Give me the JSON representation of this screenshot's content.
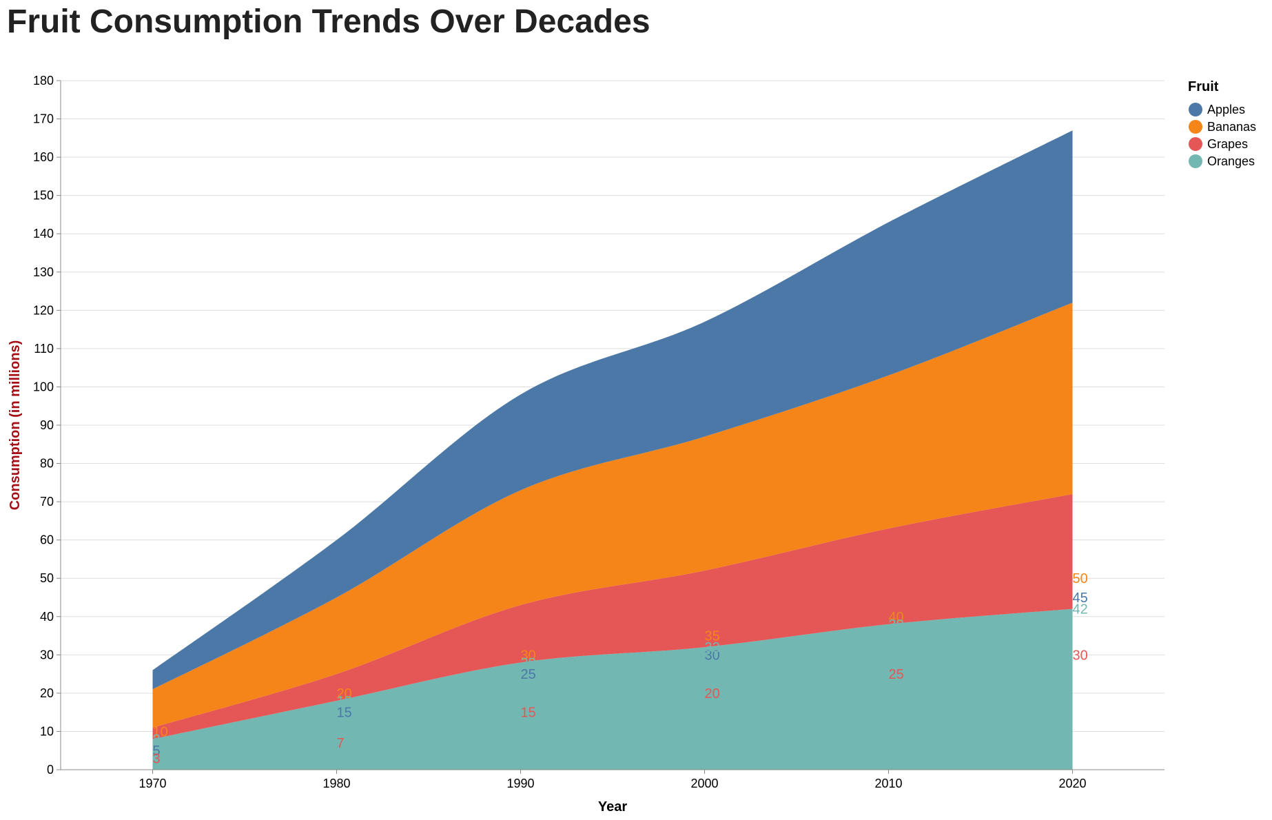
{
  "chart_data": {
    "type": "area",
    "stacked": true,
    "title": "Fruit Consumption Trends Over Decades",
    "xlabel": "Year",
    "ylabel": "Consumption (in millions)",
    "x": [
      1970,
      1980,
      1990,
      2000,
      2010,
      2020
    ],
    "xlim": [
      1965,
      2025
    ],
    "ylim": [
      0,
      180
    ],
    "y_ticks": [
      0,
      10,
      20,
      30,
      40,
      50,
      60,
      70,
      80,
      90,
      100,
      110,
      120,
      130,
      140,
      150,
      160,
      170,
      180
    ],
    "grid": true,
    "legend": {
      "title": "Fruit",
      "position": "right"
    },
    "series": [
      {
        "name": "Apples",
        "color": "#4c78a8",
        "values": [
          5,
          15,
          25,
          30,
          40,
          45
        ]
      },
      {
        "name": "Bananas",
        "color": "#f58518",
        "values": [
          10,
          20,
          30,
          35,
          40,
          50
        ]
      },
      {
        "name": "Grapes",
        "color": "#e45756",
        "values": [
          3,
          7,
          15,
          20,
          25,
          30
        ]
      },
      {
        "name": "Oranges",
        "color": "#72b7b2",
        "values": [
          8,
          18,
          28,
          32,
          38,
          42
        ]
      }
    ],
    "stack_order": [
      "Oranges",
      "Grapes",
      "Bananas",
      "Apples"
    ],
    "ylabel_color": "#a50f15"
  }
}
